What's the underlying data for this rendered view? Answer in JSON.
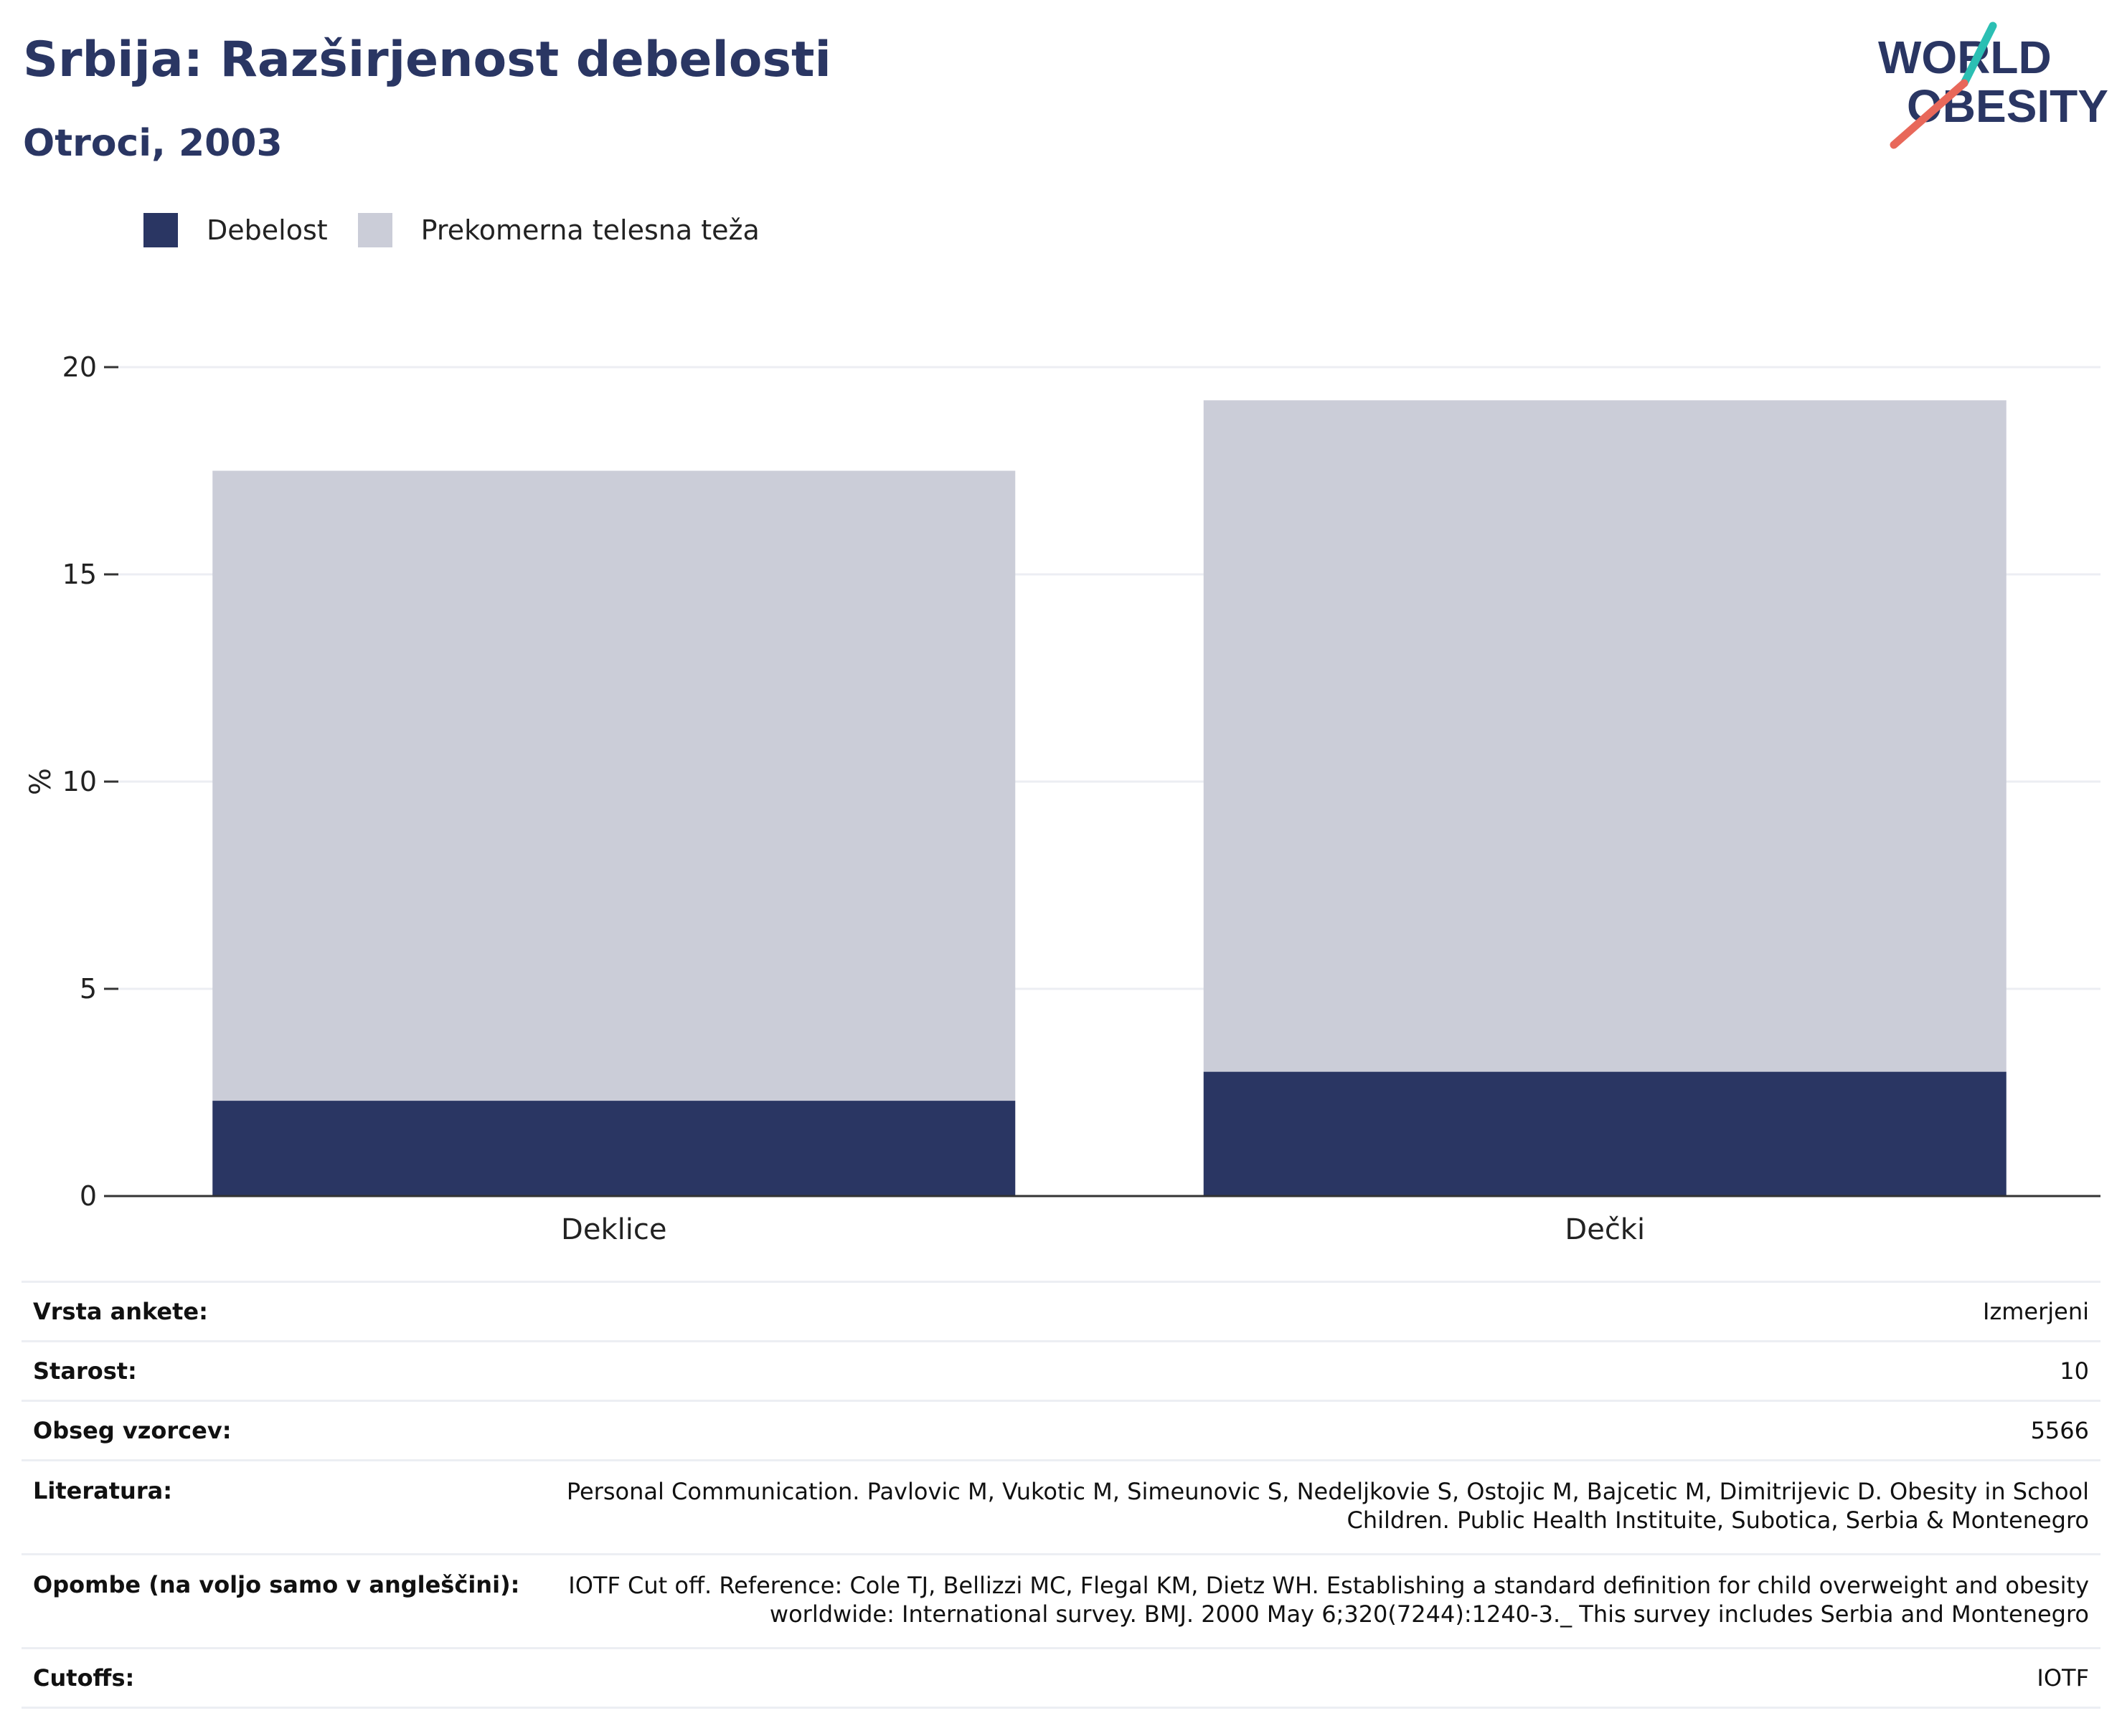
{
  "header": {
    "title": "Srbija: Razširjenost debelosti",
    "subtitle": "Otroci, 2003"
  },
  "logo": {
    "line1": "WORLD",
    "line2": "OBESITY"
  },
  "colors": {
    "obesity": "#2a3663",
    "overweight": "#cbcdd8",
    "gridline": "#eceef3",
    "axis": "#333333",
    "logo_teal": "#2bbfb3",
    "logo_coral": "#e8685a"
  },
  "chart_data": {
    "type": "bar",
    "stacked": true,
    "categories": [
      "Deklice",
      "Dečki"
    ],
    "series": [
      {
        "name": "Debelost",
        "values": [
          2.3,
          3.0
        ]
      },
      {
        "name": "Prekomerna telesna teža",
        "values": [
          15.2,
          16.2
        ]
      }
    ],
    "ylabel": "%",
    "ylim": [
      0,
      20
    ],
    "yticks": [
      0,
      5,
      10,
      15,
      20
    ],
    "grid": true,
    "legend": "top-left"
  },
  "info": [
    {
      "label": "Vrsta ankete:",
      "value": "Izmerjeni"
    },
    {
      "label": "Starost:",
      "value": "10"
    },
    {
      "label": "Obseg vzorcev:",
      "value": "5566"
    },
    {
      "label": "Literatura:",
      "value": "Personal Communication. Pavlovic M, Vukotic M, Simeunovic S, Nedeljkovie S, Ostojic M, Bajcetic M, Dimitrijevic D. Obesity in School Children. Public Health Instituite, Subotica, Serbia & Montenegro"
    },
    {
      "label": "Opombe (na voljo samo v angleščini):",
      "value": "IOTF Cut off. Reference: Cole TJ, Bellizzi MC, Flegal KM, Dietz WH. Establishing a standard definition for child overweight and obesity worldwide: International survey. BMJ. 2000 May 6;320(7244):1240-3._ This survey includes Serbia and Montenegro"
    },
    {
      "label": "Cutoffs:",
      "value": "IOTF"
    }
  ]
}
